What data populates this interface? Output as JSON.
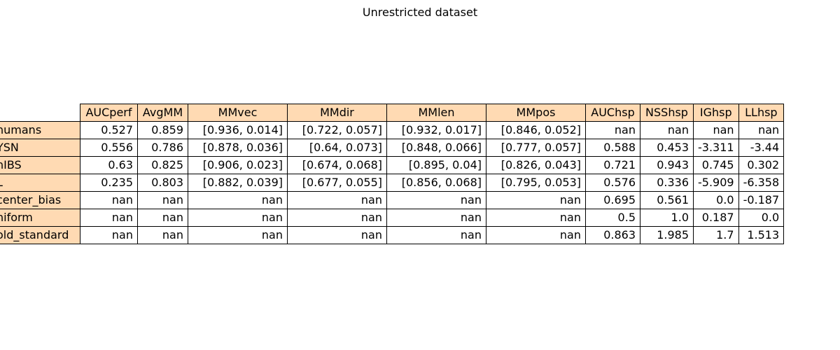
{
  "chart_data": {
    "type": "table",
    "title": "Unrestricted dataset",
    "header_color": "#ffdab3",
    "columns": [
      "AUCperf",
      "AvgMM",
      "MMvec",
      "MMdir",
      "MMlen",
      "MMpos",
      "AUChsp",
      "NSShsp",
      "IGhsp",
      "LLhsp"
    ],
    "rows": [
      {
        "label": "humans",
        "values": [
          "0.527",
          "0.859",
          "[0.936, 0.014]",
          "[0.722, 0.057]",
          "[0.932, 0.017]",
          "[0.846, 0.052]",
          "nan",
          "nan",
          "nan",
          "nan"
        ]
      },
      {
        "label": "YSN",
        "values": [
          "0.556",
          "0.786",
          "[0.878, 0.036]",
          "[0.64, 0.073]",
          "[0.848, 0.066]",
          "[0.777, 0.057]",
          "0.588",
          "0.453",
          "-3.311",
          "-3.44"
        ]
      },
      {
        "label": "nIBS",
        "values": [
          "0.63",
          "0.825",
          "[0.906, 0.023]",
          "[0.674, 0.068]",
          "[0.895, 0.04]",
          "[0.826, 0.043]",
          "0.721",
          "0.943",
          "0.745",
          "0.302"
        ]
      },
      {
        "label": "L",
        "values": [
          "0.235",
          "0.803",
          "[0.882, 0.039]",
          "[0.677, 0.055]",
          "[0.856, 0.068]",
          "[0.795, 0.053]",
          "0.576",
          "0.336",
          "-5.909",
          "-6.358"
        ]
      },
      {
        "label": "center_bias",
        "values": [
          "nan",
          "nan",
          "nan",
          "nan",
          "nan",
          "nan",
          "0.695",
          "0.561",
          "0.0",
          "-0.187"
        ]
      },
      {
        "label": "niform",
        "values": [
          "nan",
          "nan",
          "nan",
          "nan",
          "nan",
          "nan",
          "0.5",
          "1.0",
          "0.187",
          "0.0"
        ]
      },
      {
        "label": "old_standard",
        "values": [
          "nan",
          "nan",
          "nan",
          "nan",
          "nan",
          "nan",
          "0.863",
          "1.985",
          "1.7",
          "1.513"
        ]
      }
    ]
  }
}
